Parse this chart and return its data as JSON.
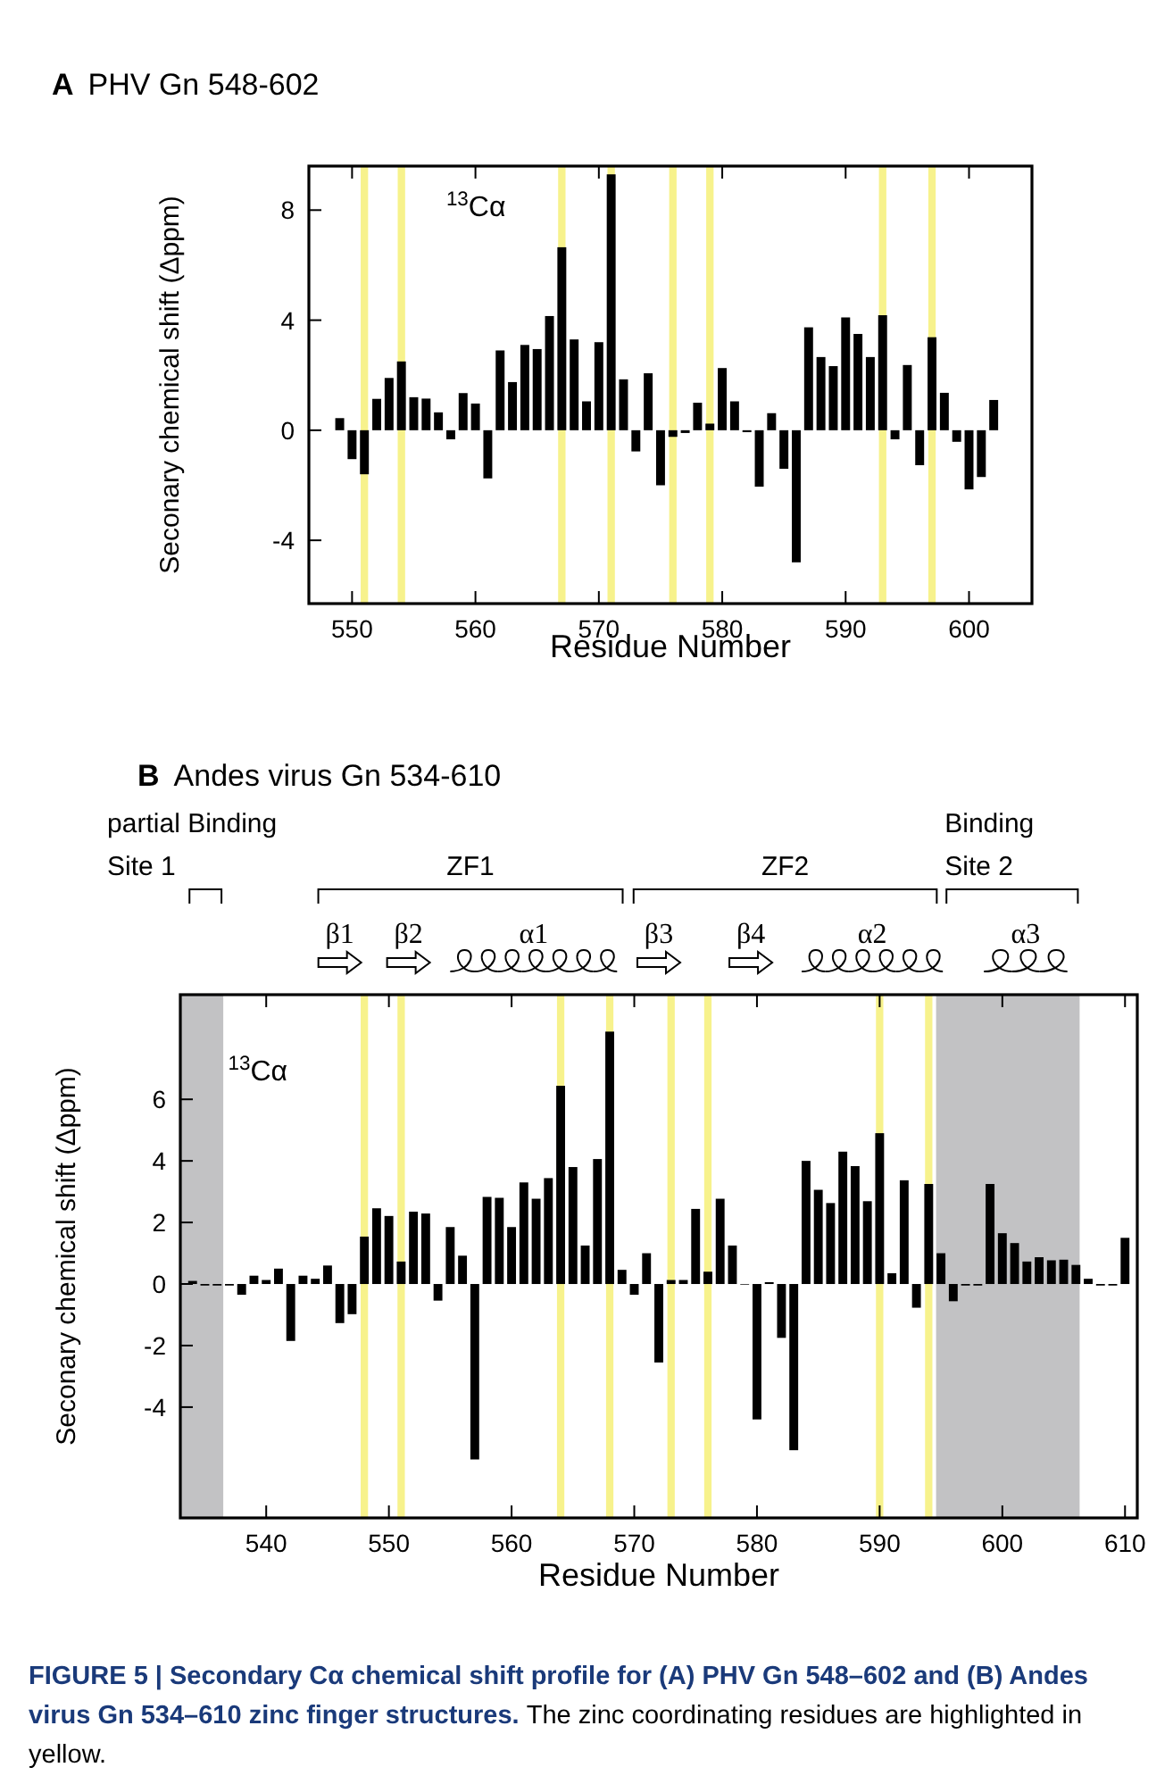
{
  "chart_data": [
    {
      "type": "bar",
      "title": "A PHV Gn 548-602",
      "xlabel": "Residue Number",
      "ylabel": "Seconary chemical shift (Δppm)",
      "x": [
        549,
        550,
        551,
        552,
        553,
        554,
        555,
        556,
        557,
        558,
        559,
        560,
        561,
        562,
        563,
        564,
        565,
        566,
        567,
        568,
        569,
        570,
        571,
        572,
        573,
        574,
        575,
        576,
        577,
        578,
        579,
        580,
        581,
        582,
        583,
        584,
        585,
        586,
        587,
        588,
        589,
        590,
        591,
        592,
        593,
        594,
        595,
        596,
        597,
        598,
        599,
        600,
        601,
        602
      ],
      "values": [
        0.44,
        -1.05,
        -1.6,
        1.14,
        1.9,
        2.5,
        1.2,
        1.15,
        0.65,
        -0.33,
        1.35,
        0.97,
        -1.75,
        2.9,
        1.75,
        3.1,
        2.95,
        4.15,
        6.65,
        3.3,
        1.05,
        3.2,
        9.3,
        1.85,
        -0.77,
        2.07,
        -2.0,
        -0.24,
        -0.1,
        1.0,
        0.24,
        2.26,
        1.05,
        -0.07,
        -2.05,
        0.62,
        -1.4,
        -4.8,
        3.74,
        2.66,
        2.33,
        4.1,
        3.5,
        2.66,
        4.18,
        -0.33,
        2.37,
        -1.27,
        3.38,
        1.36,
        -0.42,
        -2.15,
        -1.7,
        1.1
      ],
      "color": "#000000",
      "xlim": [
        546.5,
        605.1
      ],
      "xticks": [
        550,
        560,
        570,
        580,
        590,
        600
      ],
      "ylim": [
        -6.3,
        9.6
      ],
      "yticks": [
        -4,
        0,
        4,
        8
      ],
      "ref_lines": [
        {
          "axis": "x",
          "value": 551,
          "color": "#f7f28c"
        },
        {
          "axis": "x",
          "value": 554,
          "color": "#f7f28c"
        },
        {
          "axis": "x",
          "value": 567,
          "color": "#f7f28c"
        },
        {
          "axis": "x",
          "value": 571,
          "color": "#f7f28c"
        },
        {
          "axis": "x",
          "value": 576,
          "color": "#f7f28c"
        },
        {
          "axis": "x",
          "value": 579,
          "color": "#f7f28c"
        },
        {
          "axis": "x",
          "value": 593,
          "color": "#f7f28c"
        },
        {
          "axis": "x",
          "value": 597,
          "color": "#f7f28c"
        }
      ],
      "annotations": [
        "$^{13}$Cα"
      ]
    },
    {
      "type": "bar",
      "title": "B Andes virus Gn 534-610",
      "xlabel": "Residue Number",
      "ylabel": "Seconary chemical shift (Δppm)",
      "x": [
        534,
        535,
        536,
        537,
        538,
        539,
        540,
        541,
        542,
        543,
        544,
        545,
        546,
        547,
        548,
        549,
        550,
        551,
        552,
        553,
        554,
        555,
        556,
        557,
        558,
        559,
        560,
        561,
        562,
        563,
        564,
        565,
        566,
        567,
        568,
        569,
        570,
        571,
        572,
        573,
        574,
        575,
        576,
        577,
        578,
        579,
        580,
        581,
        582,
        583,
        584,
        585,
        586,
        587,
        588,
        589,
        590,
        591,
        592,
        593,
        594,
        595,
        596,
        597,
        598,
        599,
        600,
        601,
        602,
        603,
        604,
        605,
        606,
        607,
        608,
        609,
        610
      ],
      "values": [
        0.1,
        -0.05,
        -0.05,
        -0.05,
        -0.35,
        0.27,
        0.13,
        0.5,
        -1.85,
        0.27,
        0.17,
        0.6,
        -1.27,
        -0.98,
        1.54,
        2.46,
        2.21,
        0.73,
        2.35,
        2.29,
        -0.54,
        1.85,
        0.92,
        -5.7,
        2.83,
        2.8,
        1.85,
        3.3,
        2.77,
        3.44,
        6.44,
        3.8,
        1.25,
        4.06,
        8.2,
        0.46,
        -0.35,
        1.0,
        -2.55,
        0.13,
        0.13,
        2.44,
        0.4,
        2.77,
        1.25,
        -0.02,
        -4.4,
        0.06,
        -1.75,
        -5.4,
        4.0,
        3.06,
        2.63,
        4.3,
        3.83,
        2.69,
        4.9,
        0.35,
        3.37,
        -0.77,
        3.25,
        1.0,
        -0.56,
        -0.05,
        -0.05,
        3.25,
        1.65,
        1.33,
        0.73,
        0.87,
        0.77,
        0.79,
        0.62,
        0.17,
        -0.05,
        -0.05,
        1.5
      ],
      "color": "#000000",
      "xlim": [
        533,
        611
      ],
      "xticks": [
        540,
        550,
        560,
        570,
        580,
        590,
        600,
        610
      ],
      "ylim": [
        -7.6,
        9.4
      ],
      "yticks": [
        -4,
        -2,
        0,
        2,
        4,
        6
      ],
      "bands": [
        {
          "axis": "x",
          "from": 533,
          "to": 536.5,
          "color": "#c2c2c4"
        },
        {
          "axis": "x",
          "from": 594.6,
          "to": 606.3,
          "color": "#c2c2c4"
        }
      ],
      "ref_lines": [
        {
          "axis": "x",
          "value": 548,
          "color": "#f7f28c"
        },
        {
          "axis": "x",
          "value": 551,
          "color": "#f7f28c"
        },
        {
          "axis": "x",
          "value": 564,
          "color": "#f7f28c"
        },
        {
          "axis": "x",
          "value": 568,
          "color": "#f7f28c"
        },
        {
          "axis": "x",
          "value": 573,
          "color": "#f7f28c"
        },
        {
          "axis": "x",
          "value": 576,
          "color": "#f7f28c"
        },
        {
          "axis": "x",
          "value": 590,
          "color": "#f7f28c"
        },
        {
          "axis": "x",
          "value": 594,
          "color": "#f7f28c"
        }
      ],
      "annotations": [
        "$^{13}$Cα",
        "partial Binding Site 1",
        "ZF1",
        "ZF2",
        "Binding Site 2",
        "β1",
        "β2",
        "α1",
        "β3",
        "β4",
        "α2",
        "α3",
        "FIGURE 5 | Secondary Cα chemical shift profile for (A) PHV Gn 548–602 and (B) Andes virus Gn 534–610 zinc finger structures.",
        "The zinc coordinating residues are highlighted in yellow."
      ]
    }
  ]
}
